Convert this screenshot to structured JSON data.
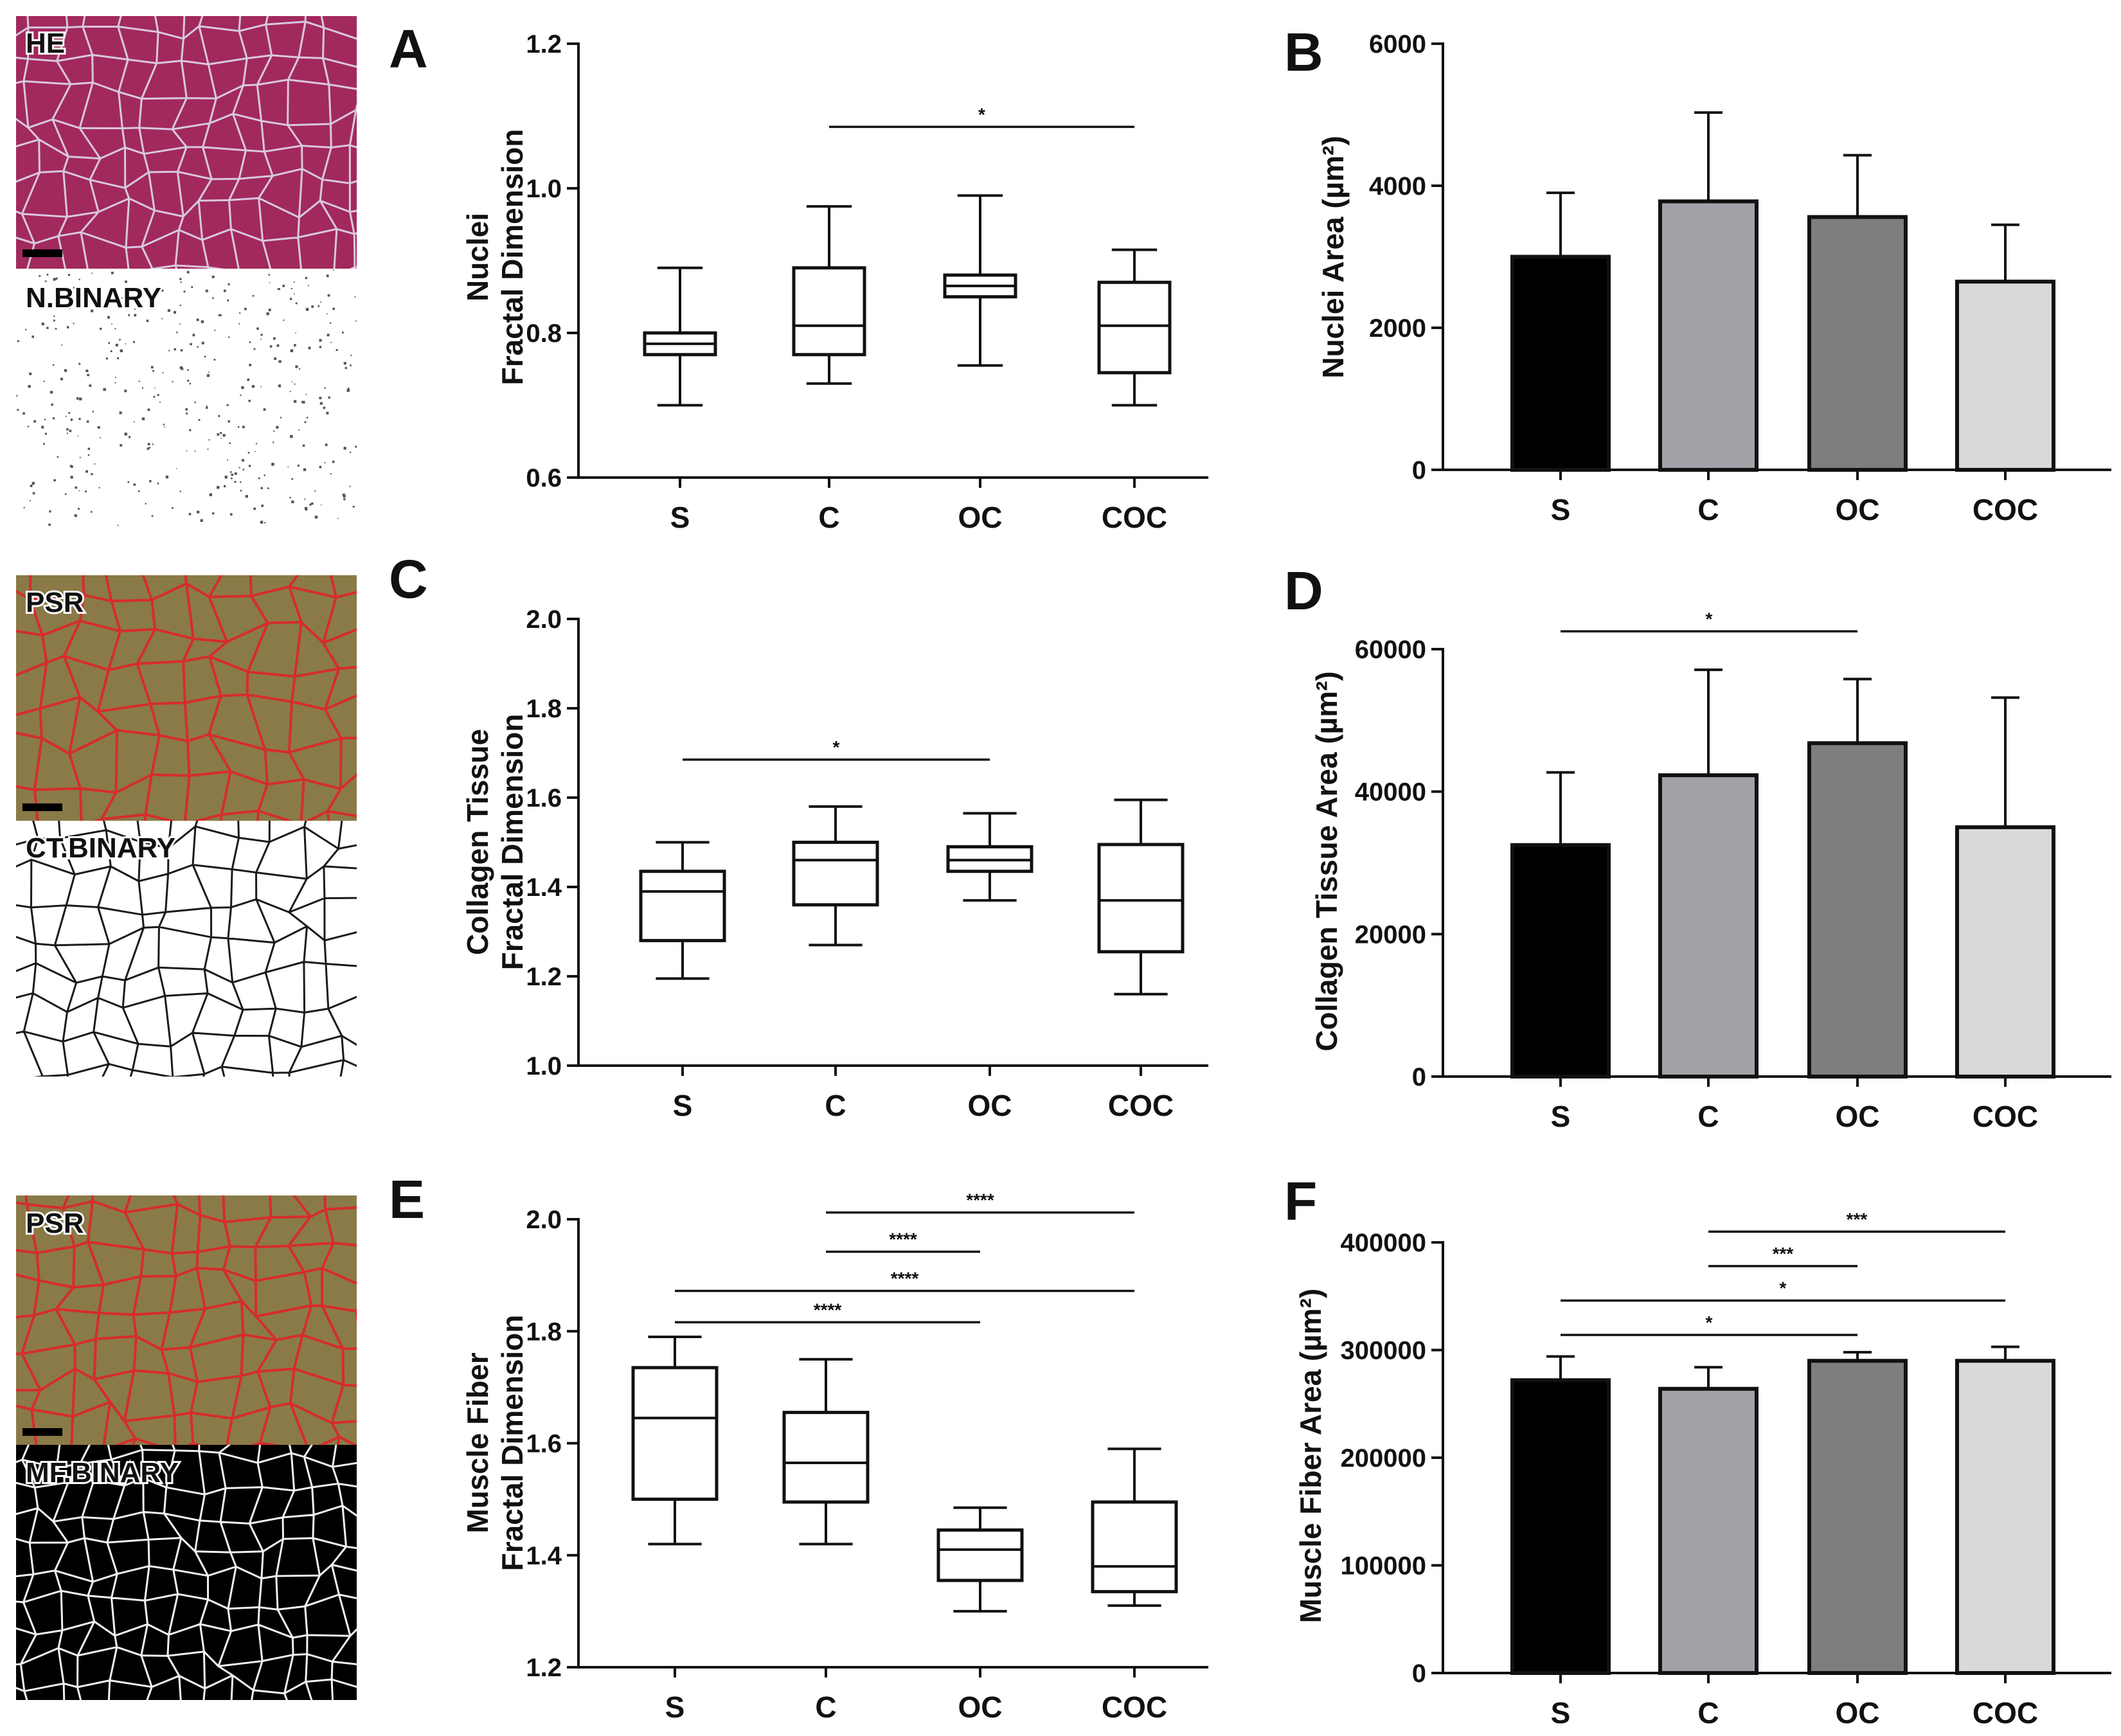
{
  "chart_data": [
    {
      "panel": "A",
      "type": "box",
      "ylabel_lines": [
        "Nuclei",
        "Fractal Dimension"
      ],
      "categories": [
        "S",
        "C",
        "OC",
        "COC"
      ],
      "ylim": [
        0.6,
        1.2
      ],
      "yticks": [
        0.6,
        0.8,
        1.0,
        1.2
      ],
      "ytick_labels": [
        "0.6",
        "0.8",
        "1.0",
        "1.2"
      ],
      "boxes": [
        {
          "min": 0.7,
          "q1": 0.77,
          "median": 0.785,
          "q3": 0.8,
          "max": 0.89
        },
        {
          "min": 0.73,
          "q1": 0.77,
          "median": 0.81,
          "q3": 0.89,
          "max": 0.975
        },
        {
          "min": 0.755,
          "q1": 0.85,
          "median": 0.865,
          "q3": 0.88,
          "max": 0.99
        },
        {
          "min": 0.7,
          "q1": 0.745,
          "median": 0.81,
          "q3": 0.87,
          "max": 0.915
        }
      ],
      "significance": [
        {
          "from": 1,
          "to": 3,
          "y": 1.085,
          "label": "*"
        }
      ]
    },
    {
      "panel": "B",
      "type": "bar",
      "ylabel": "Nuclei Area (µm²)",
      "categories": [
        "S",
        "C",
        "OC",
        "COC"
      ],
      "values": [
        3000,
        3780,
        3560,
        2650
      ],
      "errors": [
        900,
        1250,
        870,
        800
      ],
      "colors": [
        "#000000",
        "#a3a1a8",
        "#7e7e7e",
        "#d9d9d9"
      ],
      "ylim": [
        0,
        6000
      ],
      "yticks": [
        0,
        2000,
        4000,
        6000
      ],
      "ytick_labels": [
        "0",
        "2000",
        "4000",
        "6000"
      ],
      "significance": []
    },
    {
      "panel": "C",
      "type": "box",
      "ylabel_lines": [
        "Collagen Tissue",
        "Fractal Dimension"
      ],
      "categories": [
        "S",
        "C",
        "OC",
        "COC"
      ],
      "ylim": [
        1.0,
        2.0
      ],
      "yticks": [
        1.0,
        1.2,
        1.4,
        1.6,
        1.8,
        2.0
      ],
      "ytick_labels": [
        "1.0",
        "1.2",
        "1.4",
        "1.6",
        "1.8",
        "2.0"
      ],
      "boxes": [
        {
          "min": 1.195,
          "q1": 1.28,
          "median": 1.39,
          "q3": 1.435,
          "max": 1.5
        },
        {
          "min": 1.27,
          "q1": 1.36,
          "median": 1.46,
          "q3": 1.5,
          "max": 1.58
        },
        {
          "min": 1.37,
          "q1": 1.435,
          "median": 1.46,
          "q3": 1.49,
          "max": 1.565
        },
        {
          "min": 1.16,
          "q1": 1.255,
          "median": 1.37,
          "q3": 1.495,
          "max": 1.595
        }
      ],
      "significance": [
        {
          "from": 0,
          "to": 2,
          "y": 1.685,
          "label": "*"
        }
      ]
    },
    {
      "panel": "D",
      "type": "bar",
      "ylabel": "Collagen Tissue Area (µm²)",
      "categories": [
        "S",
        "C",
        "OC",
        "COC"
      ],
      "values": [
        32500,
        42300,
        46800,
        35000
      ],
      "errors": [
        10200,
        14800,
        9000,
        18200
      ],
      "colors": [
        "#000000",
        "#a3a1a8",
        "#7e7e7e",
        "#d9d9d9"
      ],
      "ylim": [
        0,
        60000
      ],
      "yticks": [
        0,
        20000,
        40000,
        60000
      ],
      "ytick_labels": [
        "0",
        "20000",
        "40000",
        "60000"
      ],
      "significance": [
        {
          "from": 0,
          "to": 2,
          "y": 62500,
          "label": "*"
        }
      ]
    },
    {
      "panel": "E",
      "type": "box",
      "ylabel_lines": [
        "Muscle Fiber",
        "Fractal Dimension"
      ],
      "categories": [
        "S",
        "C",
        "OC",
        "COC"
      ],
      "ylim": [
        1.2,
        2.0
      ],
      "yticks": [
        1.2,
        1.4,
        1.6,
        1.8,
        2.0
      ],
      "ytick_labels": [
        "1.2",
        "1.4",
        "1.6",
        "1.8",
        "2.0"
      ],
      "boxes": [
        {
          "min": 1.42,
          "q1": 1.5,
          "median": 1.645,
          "q3": 1.735,
          "max": 1.79
        },
        {
          "min": 1.42,
          "q1": 1.495,
          "median": 1.565,
          "q3": 1.655,
          "max": 1.75
        },
        {
          "min": 1.3,
          "q1": 1.355,
          "median": 1.41,
          "q3": 1.445,
          "max": 1.485
        },
        {
          "min": 1.31,
          "q1": 1.335,
          "median": 1.38,
          "q3": 1.495,
          "max": 1.59
        }
      ],
      "significance": [
        {
          "from": 1,
          "to": 3,
          "y": 2.012,
          "label": "****"
        },
        {
          "from": 1,
          "to": 2,
          "y": 1.942,
          "label": "****"
        },
        {
          "from": 0,
          "to": 3,
          "y": 1.872,
          "label": "****"
        },
        {
          "from": 0,
          "to": 2,
          "y": 1.816,
          "label": "****"
        }
      ]
    },
    {
      "panel": "F",
      "type": "bar",
      "ylabel": "Muscle Fiber Area (µm²)",
      "categories": [
        "S",
        "C",
        "OC",
        "COC"
      ],
      "values": [
        272000,
        264000,
        290000,
        290000
      ],
      "errors": [
        22000,
        20000,
        8000,
        13000
      ],
      "colors": [
        "#000000",
        "#a3a1a8",
        "#7e7e7e",
        "#d9d9d9"
      ],
      "ylim": [
        0,
        400000
      ],
      "yticks": [
        0,
        100000,
        200000,
        300000,
        400000
      ],
      "ytick_labels": [
        "0",
        "100000",
        "200000",
        "300000",
        "400000"
      ],
      "significance": [
        {
          "from": 1,
          "to": 3,
          "y": 410000,
          "label": "***"
        },
        {
          "from": 1,
          "to": 2,
          "y": 378000,
          "label": "***"
        },
        {
          "from": 0,
          "to": 3,
          "y": 346000,
          "label": "*"
        },
        {
          "from": 0,
          "to": 2,
          "y": 314000,
          "label": "*"
        }
      ]
    }
  ],
  "images": {
    "he": {
      "label": "HE",
      "tissue_color": "#a2295c",
      "boundary_color": "#d8c8e0"
    },
    "n_binary": {
      "label": "N.BINARY"
    },
    "psr1": {
      "label": "PSR",
      "tissue_color": "#8a7a48",
      "boundary_color": "#d62c2c"
    },
    "ct_binary": {
      "label": "CT.BINARY"
    },
    "psr2": {
      "label": "PSR",
      "tissue_color": "#8a7a48",
      "boundary_color": "#d62c2c"
    },
    "mf_binary": {
      "label": "MF.BINARY"
    }
  }
}
